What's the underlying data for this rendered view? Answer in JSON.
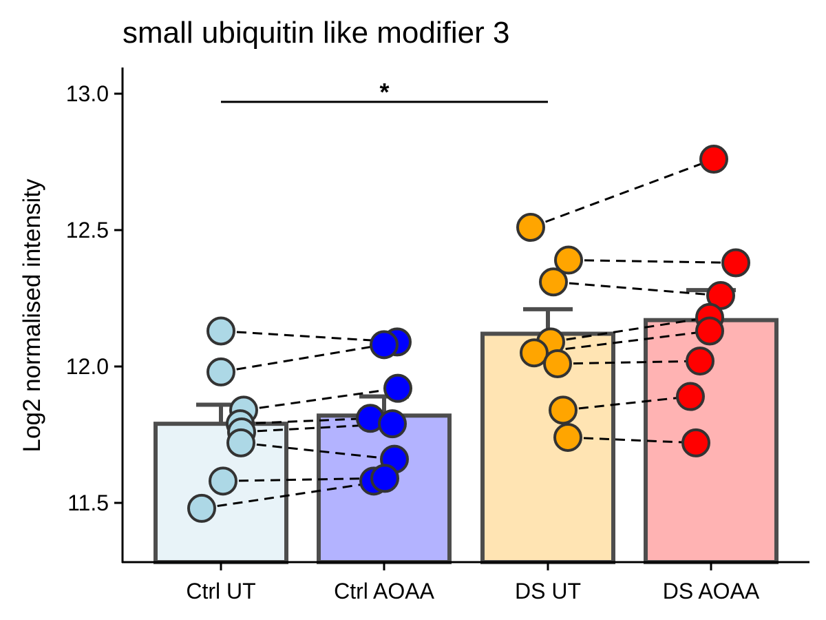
{
  "chart_data": {
    "type": "bar",
    "title": "small ubiquitin like modifier 3",
    "ylabel": "Log2 normalised intensity",
    "xlabel": "",
    "ylim": [
      11.29,
      13.1
    ],
    "yticks": [
      11.5,
      12.0,
      12.5,
      13.0
    ],
    "ytick_labels": [
      "11.5",
      "12.0",
      "12.5",
      "13.0"
    ],
    "categories": [
      "Ctrl UT",
      "Ctrl AOAA",
      "DS UT",
      "DS AOAA"
    ],
    "bar_fill_colors": [
      "#e8f3f8",
      "#b3b3ff",
      "#ffe4b3",
      "#ffb3b3"
    ],
    "point_colors": [
      "#add8e6",
      "#0000ff",
      "#ffa500",
      "#ff0000"
    ],
    "bars": [
      {
        "category": "Ctrl UT",
        "mean": 11.79,
        "error_upper": 11.86
      },
      {
        "category": "Ctrl AOAA",
        "mean": 11.82,
        "error_upper": 11.89
      },
      {
        "category": "DS UT",
        "mean": 12.12,
        "error_upper": 12.21
      },
      {
        "category": "DS AOAA",
        "mean": 12.17,
        "error_upper": 12.28
      }
    ],
    "points": {
      "Ctrl UT": [
        12.13,
        11.98,
        11.84,
        11.79,
        11.76,
        11.72,
        11.58,
        11.48
      ],
      "Ctrl AOAA": [
        12.09,
        12.08,
        11.92,
        11.81,
        11.79,
        11.66,
        11.58,
        11.59
      ],
      "DS UT": [
        12.51,
        12.39,
        12.31,
        12.09,
        12.05,
        12.01,
        11.84,
        11.74
      ],
      "DS AOAA": [
        12.76,
        12.38,
        12.26,
        12.18,
        12.13,
        12.02,
        11.89,
        11.72
      ]
    },
    "pairs": [
      {
        "from": "Ctrl UT",
        "to": "Ctrl AOAA",
        "values": [
          [
            12.13,
            12.09
          ],
          [
            11.98,
            12.08
          ],
          [
            11.84,
            11.92
          ],
          [
            11.79,
            11.81
          ],
          [
            11.76,
            11.79
          ],
          [
            11.72,
            11.66
          ],
          [
            11.58,
            11.59
          ],
          [
            11.48,
            11.58
          ]
        ]
      },
      {
        "from": "DS UT",
        "to": "DS AOAA",
        "values": [
          [
            12.51,
            12.76
          ],
          [
            12.39,
            12.38
          ],
          [
            12.31,
            12.26
          ],
          [
            12.09,
            12.18
          ],
          [
            12.05,
            12.13
          ],
          [
            12.01,
            12.02
          ],
          [
            11.84,
            11.89
          ],
          [
            11.74,
            11.72
          ]
        ]
      }
    ],
    "significance": [
      {
        "from": "Ctrl UT",
        "to": "DS UT",
        "label": "*",
        "y": 12.97
      }
    ],
    "grid": false,
    "legend": "none"
  }
}
